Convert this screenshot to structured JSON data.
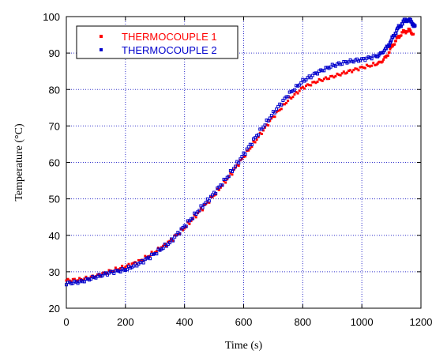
{
  "chart_data": {
    "type": "scatter",
    "title": "",
    "xlabel": "Time (s)",
    "ylabel": "Temperature (°C)",
    "xlim": [
      0,
      1200
    ],
    "ylim": [
      20,
      100
    ],
    "xticks": [
      0,
      200,
      400,
      600,
      800,
      1000,
      1200
    ],
    "yticks": [
      20,
      30,
      40,
      50,
      60,
      70,
      80,
      90,
      100
    ],
    "grid": true,
    "legend_position": "top-left",
    "series": [
      {
        "name": "THERMOCOUPLE 1",
        "color": "#ff0000",
        "x": [
          0,
          50,
          100,
          150,
          200,
          250,
          300,
          350,
          400,
          450,
          500,
          550,
          600,
          650,
          700,
          750,
          800,
          850,
          900,
          950,
          1000,
          1050,
          1080,
          1100,
          1120,
          1140,
          1160,
          1175
        ],
        "y": [
          27.6,
          27.9,
          28.8,
          30.2,
          31.4,
          33.0,
          35.4,
          38.3,
          42.0,
          46.5,
          51.0,
          56.0,
          61.5,
          67.0,
          72.5,
          77.0,
          80.5,
          82.3,
          83.5,
          84.8,
          86.0,
          87.0,
          88.5,
          91.5,
          94.0,
          95.8,
          96.2,
          95.2
        ]
      },
      {
        "name": "THERMOCOUPLE 2",
        "color": "#0000cc",
        "x": [
          0,
          50,
          100,
          150,
          200,
          250,
          300,
          350,
          400,
          450,
          500,
          550,
          600,
          650,
          700,
          750,
          800,
          850,
          900,
          950,
          1000,
          1050,
          1080,
          1100,
          1120,
          1140,
          1155,
          1170,
          1180
        ],
        "y": [
          26.8,
          27.3,
          28.6,
          29.8,
          30.6,
          32.4,
          35.0,
          38.0,
          42.5,
          47.0,
          51.5,
          56.5,
          62.2,
          68.0,
          73.5,
          78.5,
          82.3,
          84.7,
          86.5,
          87.6,
          88.2,
          89.2,
          90.8,
          93.5,
          96.5,
          98.5,
          99.2,
          98.3,
          97.5
        ]
      }
    ]
  }
}
